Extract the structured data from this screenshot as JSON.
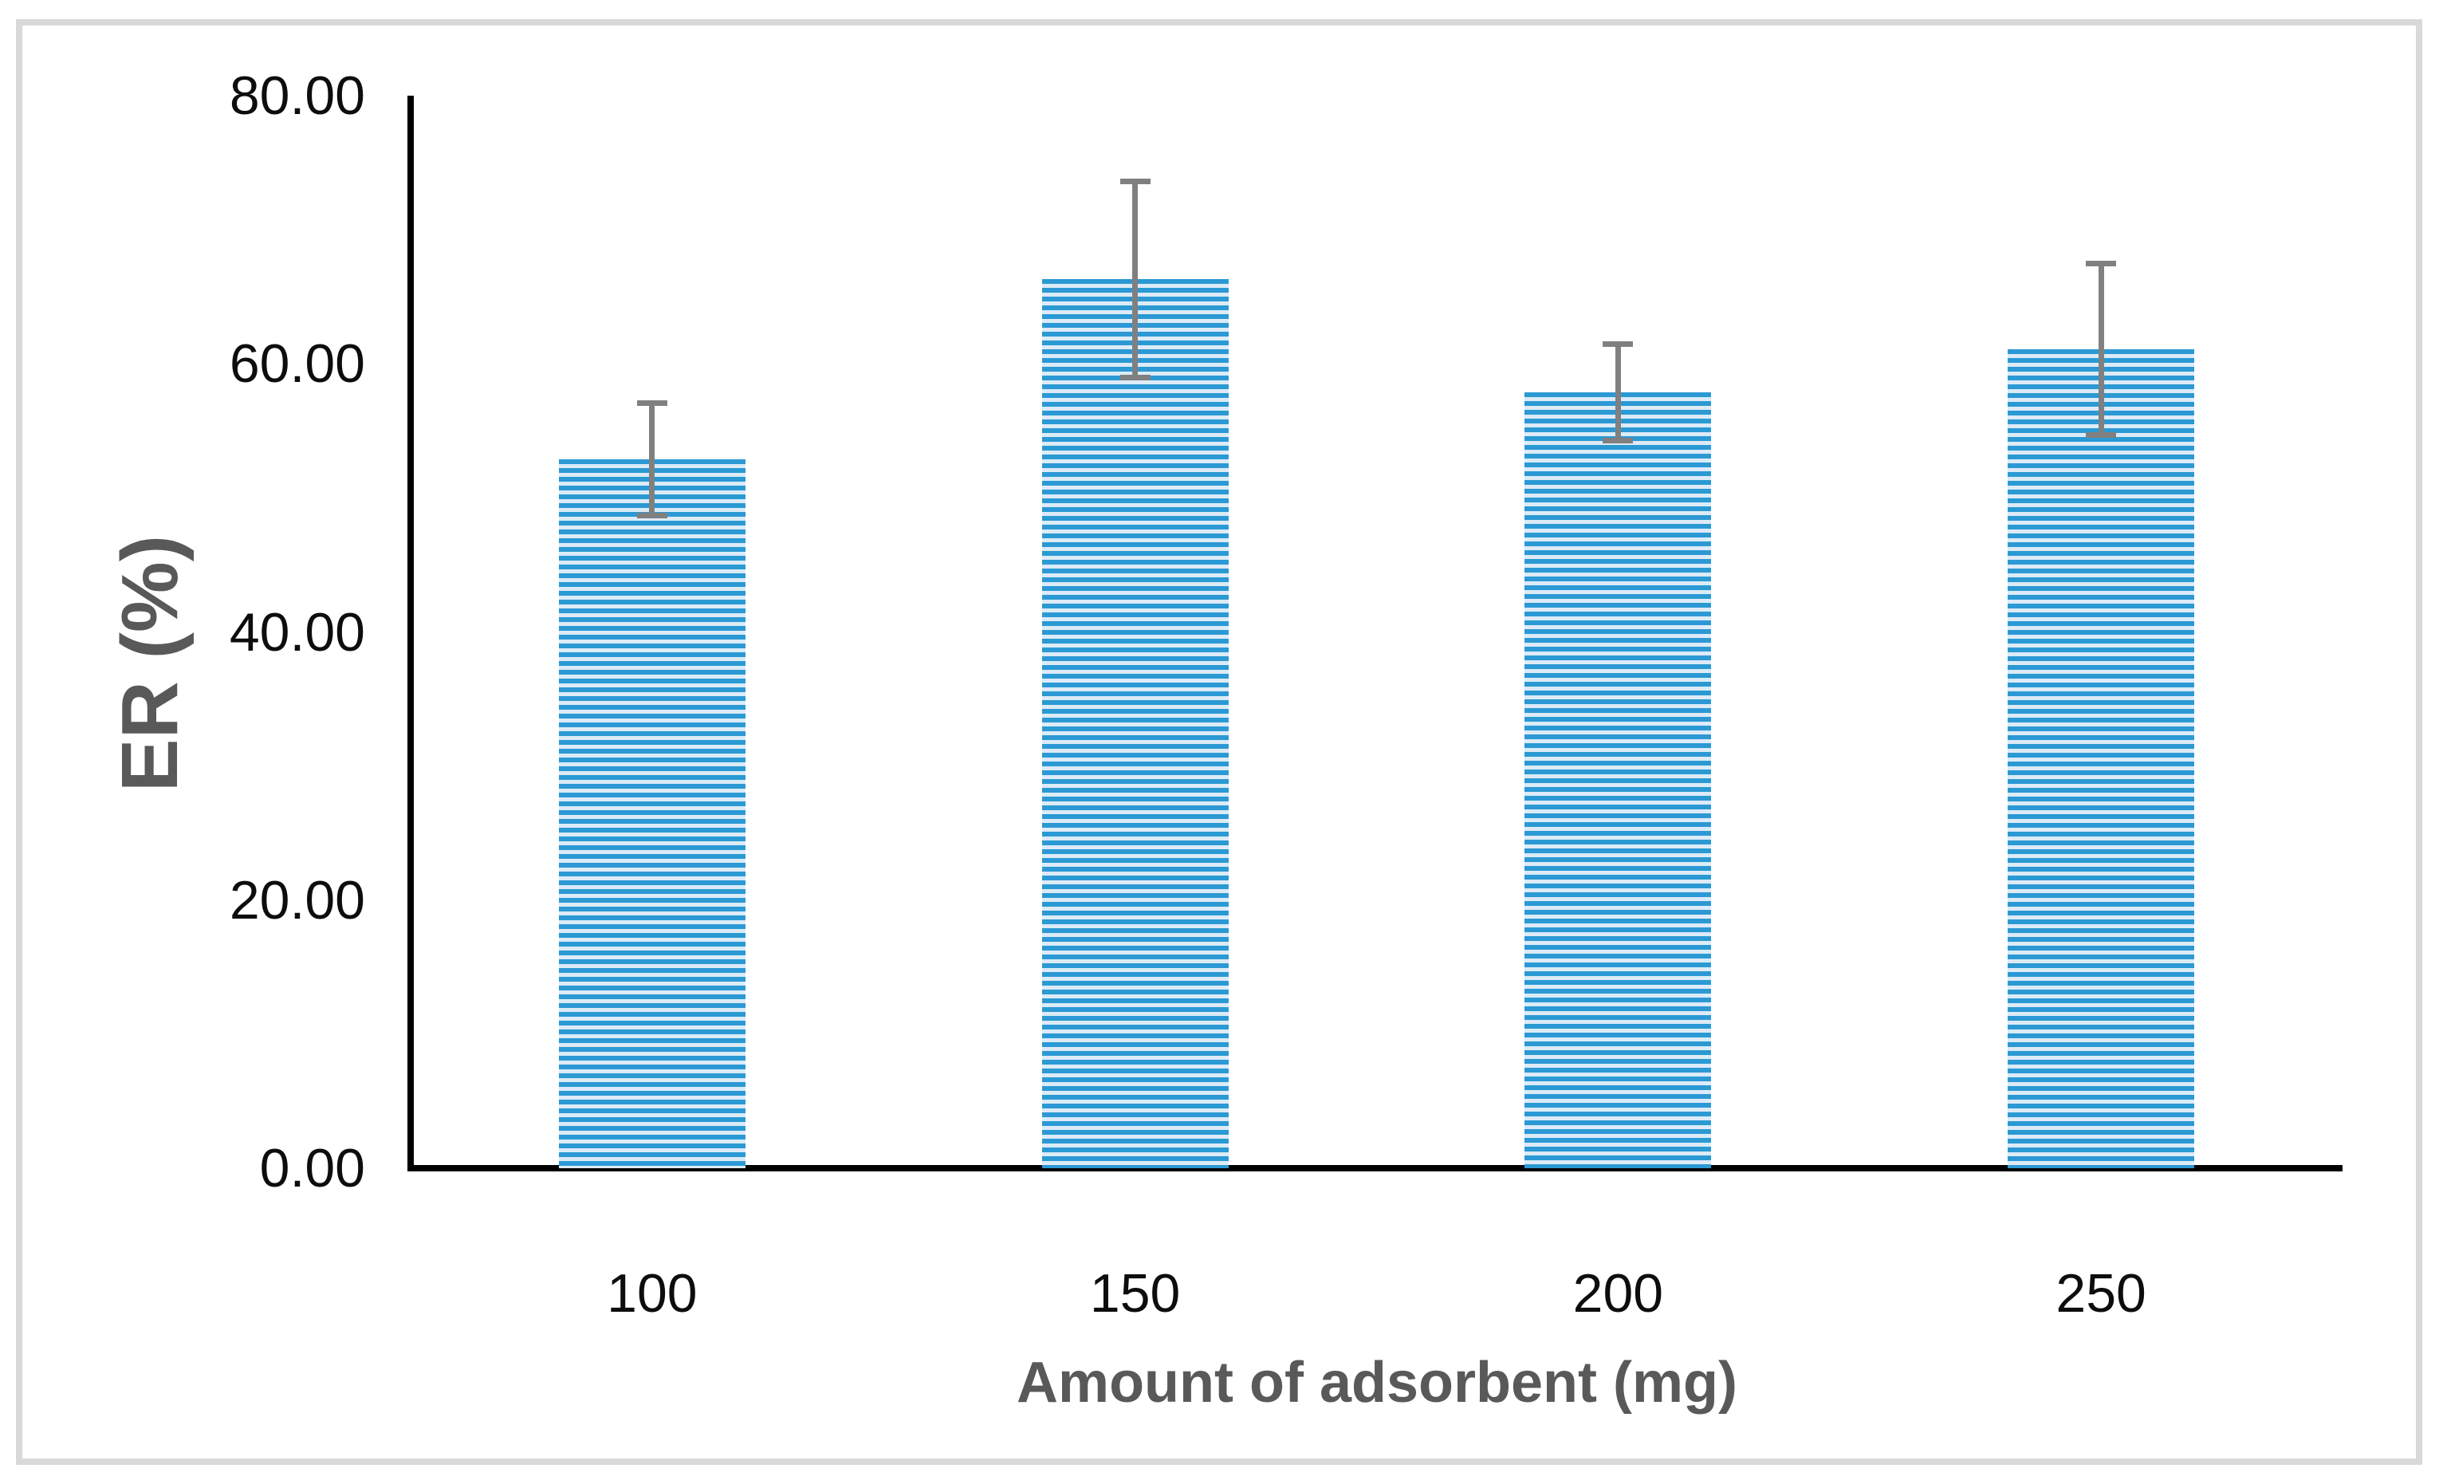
{
  "figure": {
    "background": "#FFFFFF",
    "border_color": "#D9D9D9"
  },
  "chart_data": {
    "type": "bar",
    "title": "",
    "xlabel": "Amount of adsorbent (mg)",
    "ylabel": "ER (%)",
    "categories": [
      "100",
      "150",
      "200",
      "250"
    ],
    "series": [
      {
        "name": "ER",
        "values": [
          52.9,
          66.3,
          57.9,
          61.1
        ],
        "error_bars": [
          4.2,
          7.3,
          3.6,
          6.4
        ]
      }
    ],
    "ylim": [
      0,
      80
    ],
    "ytick_labels": [
      "0.00",
      "20.00",
      "40.00",
      "60.00",
      "80.00"
    ],
    "ytick_values": [
      0,
      20,
      40,
      60,
      80
    ],
    "grid": false,
    "legend": "none",
    "bar_pattern": "horizontal-stripes",
    "colors": {
      "bar_stripe": "#2B99D4",
      "bar_stripe_light": "#DCEBF7",
      "error_bar": "#808080",
      "axis_line": "#000000",
      "tick_label": "#0D0D0D",
      "axis_title": "#595959"
    }
  }
}
